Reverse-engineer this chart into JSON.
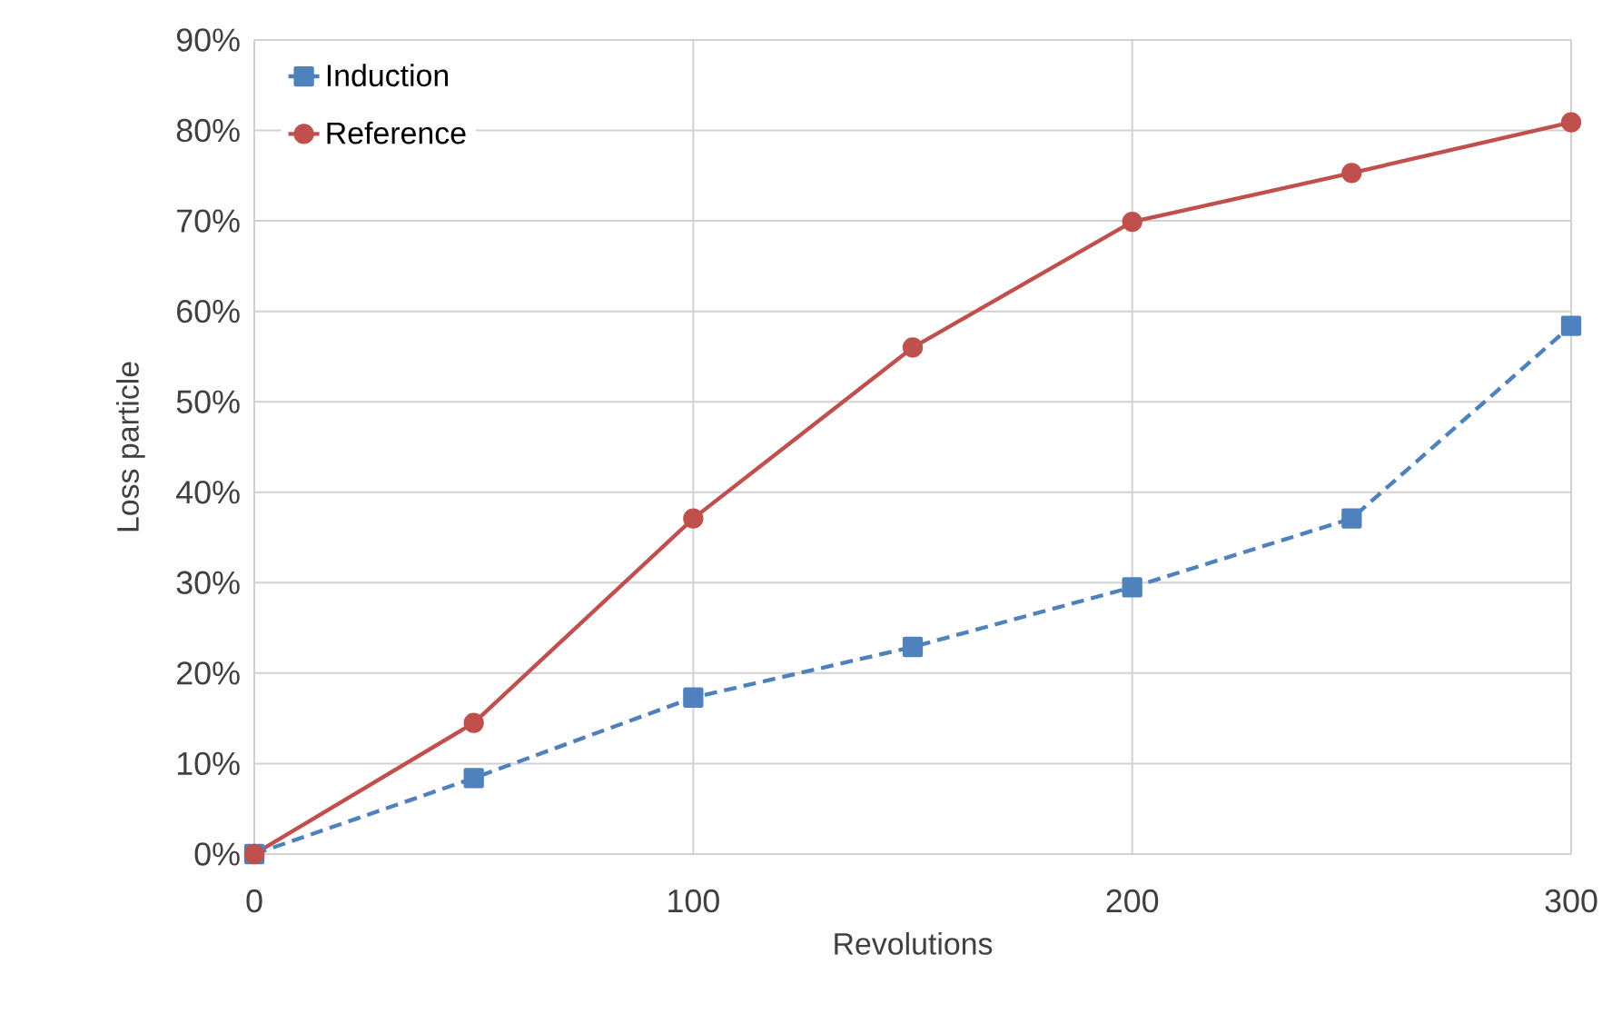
{
  "chart_data": {
    "type": "line",
    "xlabel": "Revolutions",
    "ylabel": "Loss particle",
    "x": [
      0,
      50,
      100,
      150,
      200,
      250,
      300
    ],
    "series": [
      {
        "name": "Induction",
        "color": "#4f81bd",
        "marker": "square",
        "line_style": "dashed",
        "values": [
          0,
          8.4,
          17.3,
          22.9,
          29.5,
          37.1,
          58.4
        ]
      },
      {
        "name": "Reference",
        "color": "#c0504d",
        "marker": "circle",
        "line_style": "solid",
        "values": [
          0,
          14.5,
          37.1,
          56.0,
          69.9,
          75.3,
          80.9
        ]
      }
    ],
    "xlim": [
      0,
      300
    ],
    "xticks": [
      0,
      100,
      200,
      300
    ],
    "ylim": [
      0,
      90
    ],
    "yticks": [
      {
        "value": 0,
        "label": "0%"
      },
      {
        "value": 10,
        "label": "10%"
      },
      {
        "value": 20,
        "label": "20%"
      },
      {
        "value": 30,
        "label": "30%"
      },
      {
        "value": 40,
        "label": "40%"
      },
      {
        "value": 50,
        "label": "50%"
      },
      {
        "value": 60,
        "label": "60%"
      },
      {
        "value": 70,
        "label": "70%"
      },
      {
        "value": 80,
        "label": "80%"
      },
      {
        "value": 90,
        "label": "90%"
      }
    ],
    "grid": true,
    "legend": "top left"
  }
}
